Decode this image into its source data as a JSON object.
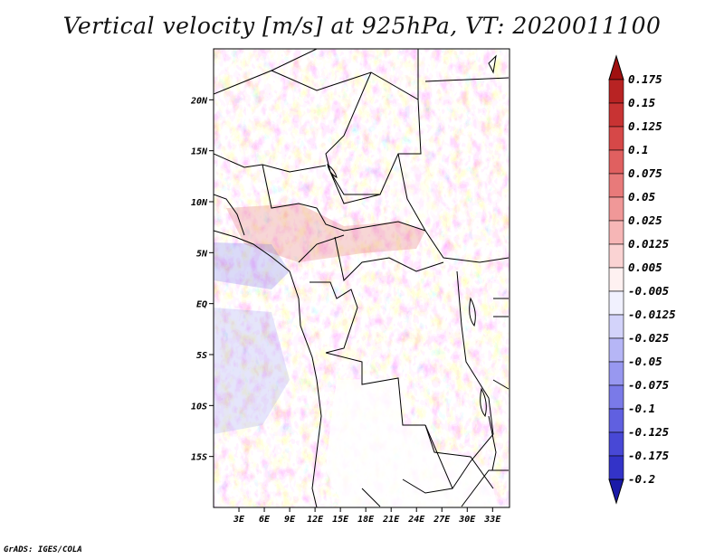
{
  "title": "Vertical velocity [m/s] at 925hPa, VT: 2020011100",
  "credit": "GrADS: IGES/COLA",
  "map": {
    "lon_range": [
      0,
      35
    ],
    "lat_range": [
      -20,
      25
    ],
    "lat_ticks": [
      {
        "value": 20,
        "label": "20N"
      },
      {
        "value": 15,
        "label": "15N"
      },
      {
        "value": 10,
        "label": "10N"
      },
      {
        "value": 5,
        "label": "5N"
      },
      {
        "value": 0,
        "label": "EQ"
      },
      {
        "value": -5,
        "label": "5S"
      },
      {
        "value": -10,
        "label": "10S"
      },
      {
        "value": -15,
        "label": "15S"
      }
    ],
    "lon_ticks": [
      {
        "value": 3,
        "label": "3E"
      },
      {
        "value": 6,
        "label": "6E"
      },
      {
        "value": 9,
        "label": "9E"
      },
      {
        "value": 12,
        "label": "12E"
      },
      {
        "value": 15,
        "label": "15E"
      },
      {
        "value": 18,
        "label": "18E"
      },
      {
        "value": 21,
        "label": "21E"
      },
      {
        "value": 24,
        "label": "24E"
      },
      {
        "value": 27,
        "label": "27E"
      },
      {
        "value": 30,
        "label": "30E"
      },
      {
        "value": 33,
        "label": "33E"
      }
    ]
  },
  "colorbar": {
    "levels": [
      {
        "label": "0.175",
        "color": "#b01c1c"
      },
      {
        "label": "0.15",
        "color": "#c02a2a"
      },
      {
        "label": "0.125",
        "color": "#d03c3c"
      },
      {
        "label": "0.1",
        "color": "#dc5454"
      },
      {
        "label": "0.075",
        "color": "#e46c6c"
      },
      {
        "label": "0.05",
        "color": "#ec8888"
      },
      {
        "label": "0.025",
        "color": "#f4a8a8"
      },
      {
        "label": "0.0125",
        "color": "#f8c4c4"
      },
      {
        "label": "0.005",
        "color": "#fce2e2"
      },
      {
        "label": "-0.005",
        "color": "#ffffff"
      },
      {
        "label": "-0.0125",
        "color": "#e2e2fc"
      },
      {
        "label": "-0.025",
        "color": "#c4c4f8"
      },
      {
        "label": "-0.05",
        "color": "#a8a8f4"
      },
      {
        "label": "-0.075",
        "color": "#8888ec"
      },
      {
        "label": "-0.1",
        "color": "#6c6ce4"
      },
      {
        "label": "-0.125",
        "color": "#5454dc"
      },
      {
        "label": "-0.175",
        "color": "#3c3cd0"
      },
      {
        "label": "-0.2",
        "color": "#2a2ac0"
      }
    ],
    "top_arrow_color": "#a01010",
    "bottom_arrow_color": "#1a1aa8"
  }
}
